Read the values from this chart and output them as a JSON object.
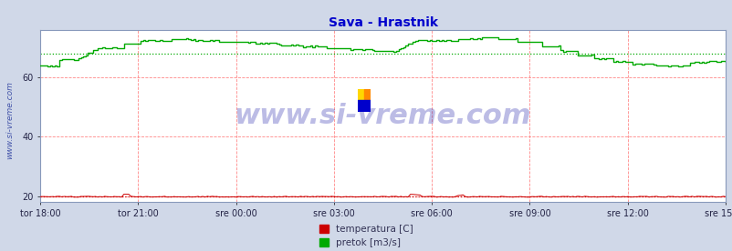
{
  "title": "Sava - Hrastnik",
  "title_color": "#0000cc",
  "title_fontsize": 10,
  "bg_color": "#d0d8e8",
  "plot_bg_color": "#ffffff",
  "ylim": [
    18,
    76
  ],
  "yticks": [
    20,
    40,
    60
  ],
  "xtick_labels": [
    "tor 18:00",
    "tor 21:00",
    "sre 00:00",
    "sre 03:00",
    "sre 06:00",
    "sre 09:00",
    "sre 12:00",
    "sre 15:00"
  ],
  "grid_color": "#ff8888",
  "avg_temp": 19.8,
  "avg_pretok": 68.0,
  "temp_color": "#cc0000",
  "pretok_color": "#00aa00",
  "watermark": "www.si-vreme.com",
  "watermark_color": "#2222aa",
  "watermark_alpha": 0.3,
  "watermark_fontsize": 22,
  "legend_label_temp": "temperatura [C]",
  "legend_label_pretok": "pretok [m3/s]",
  "ylabel_text": "www.si-vreme.com",
  "ylabel_color": "#4455aa",
  "ylabel_fontsize": 6.5
}
